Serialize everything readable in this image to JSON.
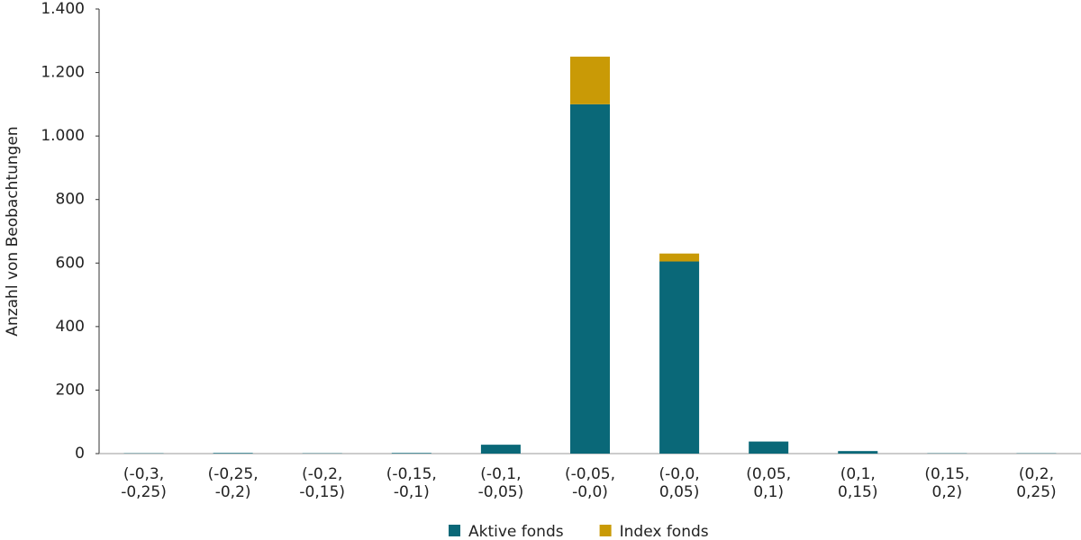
{
  "chart_data": {
    "type": "stacked_bar",
    "y_label": "Anzahl von Beobachtungen",
    "categories": [
      [
        "(-0,3,",
        "-0,25)"
      ],
      [
        "(-0,25,",
        "-0,2)"
      ],
      [
        "(-0,2,",
        "-0,15)"
      ],
      [
        "(-0,15,",
        "-0,1)"
      ],
      [
        "(-0,1,",
        "-0,05)"
      ],
      [
        "(-0,05,",
        "-0,0)"
      ],
      [
        "(-0,0,",
        "0,05)"
      ],
      [
        "(0,05,",
        "0,1)"
      ],
      [
        "(0,1,",
        "0,15)"
      ],
      [
        "(0,15,",
        "0,2)"
      ],
      [
        "(0,2,",
        "0,25)"
      ]
    ],
    "series": [
      {
        "name": "Aktive fonds",
        "color": "#0a6878",
        "values": [
          1,
          2,
          1,
          2,
          28,
          1100,
          605,
          38,
          8,
          1,
          1
        ]
      },
      {
        "name": "Index fonds",
        "color": "#c99a06",
        "values": [
          0,
          0,
          0,
          0,
          0,
          150,
          25,
          0,
          0,
          0,
          0
        ]
      }
    ],
    "ylim": [
      0,
      1400
    ],
    "yticks": [
      0,
      200,
      400,
      600,
      800,
      {
        "value": 1000,
        "label": "1.000"
      },
      {
        "value": 1200,
        "label": "1.200"
      },
      {
        "value": 1400,
        "label": "1.400"
      }
    ],
    "grid": false,
    "legend": "bottom"
  }
}
